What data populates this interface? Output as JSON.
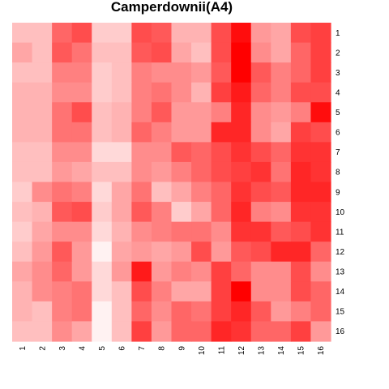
{
  "chart_data": {
    "type": "heatmap",
    "title": "Camperdownii(A4)",
    "x_labels": [
      "1",
      "2",
      "3",
      "4",
      "5",
      "6",
      "7",
      "8",
      "9",
      "10",
      "11",
      "12",
      "13",
      "14",
      "15",
      "16"
    ],
    "y_labels": [
      "1",
      "2",
      "3",
      "4",
      "5",
      "6",
      "7",
      "8",
      "9",
      "10",
      "11",
      "12",
      "13",
      "14",
      "15",
      "16"
    ],
    "colors": {
      "low": "#FFFFFF",
      "high": "#FF0000"
    },
    "value_range": [
      0,
      1
    ],
    "values": [
      [
        0.25,
        0.25,
        0.6,
        0.7,
        0.2,
        0.2,
        0.7,
        0.65,
        0.3,
        0.3,
        0.7,
        0.95,
        0.4,
        0.35,
        0.7,
        0.75
      ],
      [
        0.35,
        0.25,
        0.65,
        0.55,
        0.25,
        0.25,
        0.65,
        0.7,
        0.35,
        0.25,
        0.7,
        1.0,
        0.45,
        0.35,
        0.6,
        0.75
      ],
      [
        0.25,
        0.25,
        0.5,
        0.5,
        0.2,
        0.25,
        0.5,
        0.45,
        0.45,
        0.4,
        0.65,
        1.0,
        0.65,
        0.5,
        0.6,
        0.75
      ],
      [
        0.3,
        0.3,
        0.45,
        0.45,
        0.2,
        0.25,
        0.5,
        0.55,
        0.45,
        0.3,
        0.75,
        0.9,
        0.6,
        0.5,
        0.7,
        0.7
      ],
      [
        0.3,
        0.3,
        0.55,
        0.7,
        0.25,
        0.3,
        0.5,
        0.65,
        0.4,
        0.4,
        0.5,
        0.85,
        0.45,
        0.4,
        0.5,
        0.95
      ],
      [
        0.3,
        0.3,
        0.55,
        0.55,
        0.25,
        0.3,
        0.6,
        0.5,
        0.4,
        0.4,
        0.85,
        0.85,
        0.45,
        0.35,
        0.75,
        0.7
      ],
      [
        0.25,
        0.25,
        0.45,
        0.45,
        0.15,
        0.15,
        0.45,
        0.45,
        0.65,
        0.6,
        0.7,
        0.8,
        0.7,
        0.6,
        0.8,
        0.8
      ],
      [
        0.25,
        0.25,
        0.4,
        0.35,
        0.25,
        0.25,
        0.45,
        0.4,
        0.5,
        0.6,
        0.7,
        0.75,
        0.8,
        0.55,
        0.85,
        0.8
      ],
      [
        0.2,
        0.45,
        0.55,
        0.5,
        0.15,
        0.35,
        0.55,
        0.25,
        0.35,
        0.5,
        0.6,
        0.8,
        0.7,
        0.65,
        0.85,
        0.85
      ],
      [
        0.25,
        0.3,
        0.65,
        0.7,
        0.2,
        0.35,
        0.65,
        0.5,
        0.2,
        0.35,
        0.6,
        0.85,
        0.5,
        0.45,
        0.8,
        0.8
      ],
      [
        0.2,
        0.35,
        0.45,
        0.45,
        0.15,
        0.3,
        0.45,
        0.5,
        0.55,
        0.55,
        0.45,
        0.8,
        0.8,
        0.65,
        0.7,
        0.8
      ],
      [
        0.25,
        0.4,
        0.65,
        0.4,
        0.05,
        0.35,
        0.4,
        0.35,
        0.4,
        0.7,
        0.4,
        0.65,
        0.7,
        0.85,
        0.85,
        0.6
      ],
      [
        0.35,
        0.45,
        0.6,
        0.4,
        0.15,
        0.4,
        0.9,
        0.4,
        0.5,
        0.45,
        0.75,
        0.6,
        0.45,
        0.45,
        0.7,
        0.45
      ],
      [
        0.3,
        0.45,
        0.5,
        0.55,
        0.15,
        0.25,
        0.7,
        0.5,
        0.35,
        0.35,
        0.75,
        1.0,
        0.45,
        0.45,
        0.7,
        0.6
      ],
      [
        0.3,
        0.25,
        0.5,
        0.55,
        0.05,
        0.25,
        0.6,
        0.45,
        0.6,
        0.55,
        0.75,
        0.85,
        0.65,
        0.4,
        0.5,
        0.6
      ],
      [
        0.25,
        0.25,
        0.45,
        0.35,
        0.05,
        0.25,
        0.75,
        0.4,
        0.6,
        0.6,
        0.85,
        0.8,
        0.6,
        0.6,
        0.75,
        0.4
      ]
    ]
  }
}
